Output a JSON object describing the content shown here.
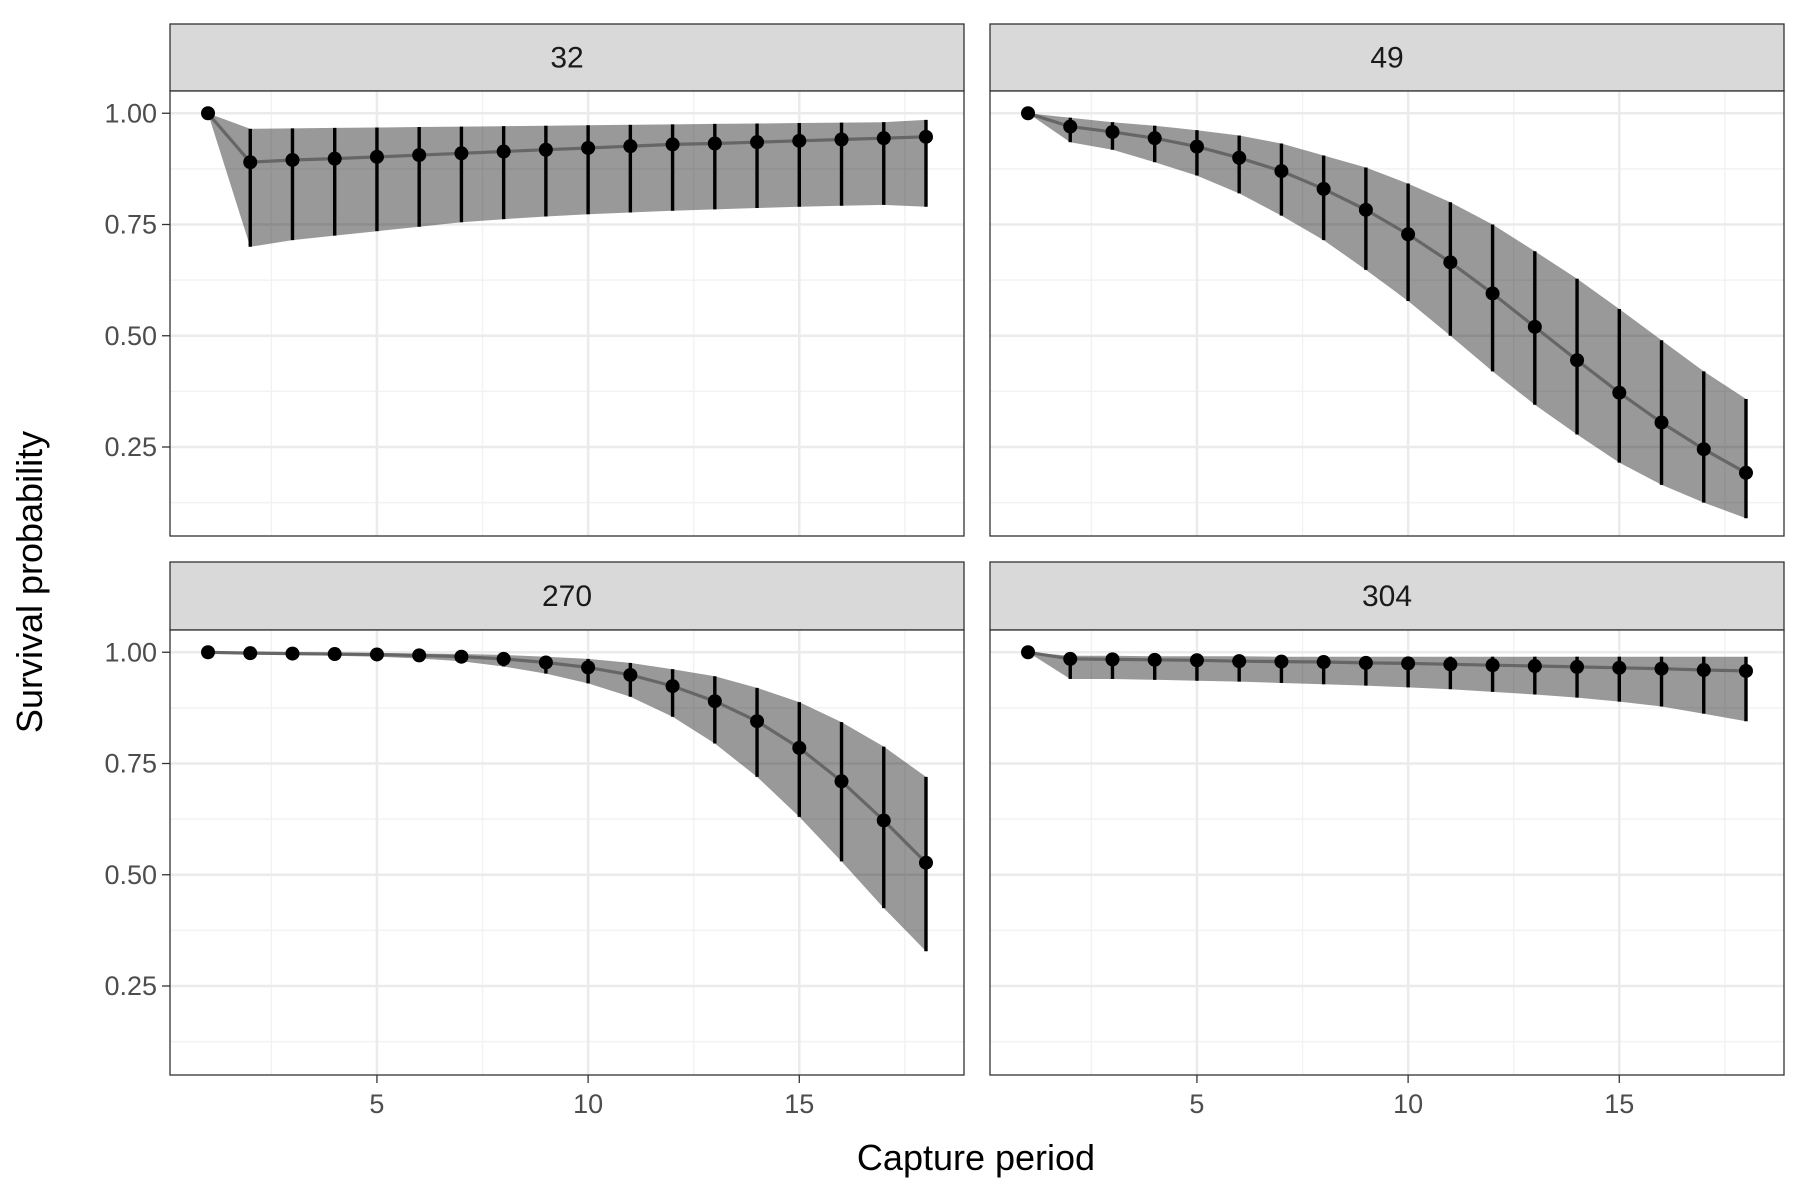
{
  "chart_data": {
    "type": "line",
    "xlabel": "Capture period",
    "ylabel": "Survival probability",
    "xlim": [
      0.1,
      18.9
    ],
    "ylim": [
      0.05,
      1.05
    ],
    "x_ticks": [
      5,
      10,
      15
    ],
    "y_ticks": [
      1.0,
      0.75,
      0.5,
      0.25
    ],
    "y_tick_labels": [
      "1.00",
      "0.75",
      "0.50",
      "0.25"
    ],
    "x": [
      1,
      2,
      3,
      4,
      5,
      6,
      7,
      8,
      9,
      10,
      11,
      12,
      13,
      14,
      15,
      16,
      17,
      18
    ],
    "grid": true,
    "panels": [
      {
        "label": "32",
        "estimate": [
          1.0,
          0.89,
          0.895,
          0.898,
          0.902,
          0.906,
          0.91,
          0.914,
          0.918,
          0.922,
          0.926,
          0.93,
          0.932,
          0.935,
          0.938,
          0.941,
          0.944,
          0.947
        ],
        "lower": [
          1.0,
          0.7,
          0.715,
          0.725,
          0.735,
          0.745,
          0.755,
          0.762,
          0.768,
          0.773,
          0.777,
          0.781,
          0.784,
          0.787,
          0.79,
          0.792,
          0.794,
          0.79
        ],
        "upper": [
          1.0,
          0.965,
          0.966,
          0.967,
          0.968,
          0.969,
          0.97,
          0.971,
          0.972,
          0.973,
          0.974,
          0.975,
          0.976,
          0.977,
          0.978,
          0.979,
          0.98,
          0.985
        ]
      },
      {
        "label": "49",
        "estimate": [
          1.0,
          0.97,
          0.958,
          0.944,
          0.925,
          0.9,
          0.87,
          0.83,
          0.783,
          0.728,
          0.665,
          0.595,
          0.52,
          0.445,
          0.372,
          0.305,
          0.245,
          0.192
        ],
        "lower": [
          1.0,
          0.935,
          0.918,
          0.89,
          0.86,
          0.82,
          0.77,
          0.715,
          0.648,
          0.578,
          0.5,
          0.42,
          0.345,
          0.278,
          0.215,
          0.165,
          0.125,
          0.09
        ],
        "upper": [
          1.0,
          0.99,
          0.98,
          0.972,
          0.962,
          0.95,
          0.932,
          0.905,
          0.878,
          0.842,
          0.8,
          0.75,
          0.69,
          0.628,
          0.56,
          0.49,
          0.42,
          0.358
        ]
      },
      {
        "label": "270",
        "estimate": [
          1.0,
          0.998,
          0.997,
          0.996,
          0.995,
          0.993,
          0.99,
          0.985,
          0.977,
          0.966,
          0.949,
          0.924,
          0.89,
          0.845,
          0.785,
          0.71,
          0.622,
          0.527
        ],
        "lower": [
          1.0,
          0.996,
          0.994,
          0.992,
          0.99,
          0.986,
          0.98,
          0.968,
          0.952,
          0.93,
          0.9,
          0.855,
          0.795,
          0.72,
          0.63,
          0.53,
          0.425,
          0.328
        ],
        "upper": [
          1.0,
          0.999,
          0.999,
          0.998,
          0.998,
          0.997,
          0.996,
          0.994,
          0.99,
          0.985,
          0.976,
          0.962,
          0.946,
          0.92,
          0.888,
          0.843,
          0.788,
          0.72
        ]
      },
      {
        "label": "304",
        "estimate": [
          1.0,
          0.985,
          0.984,
          0.983,
          0.982,
          0.98,
          0.979,
          0.978,
          0.976,
          0.975,
          0.973,
          0.971,
          0.969,
          0.967,
          0.965,
          0.963,
          0.96,
          0.958
        ],
        "lower": [
          1.0,
          0.94,
          0.94,
          0.938,
          0.936,
          0.934,
          0.931,
          0.928,
          0.925,
          0.921,
          0.917,
          0.911,
          0.905,
          0.898,
          0.889,
          0.878,
          0.862,
          0.845
        ],
        "upper": [
          1.0,
          0.992,
          0.992,
          0.991,
          0.991,
          0.991,
          0.99,
          0.99,
          0.99,
          0.99,
          0.99,
          0.99,
          0.99,
          0.99,
          0.99,
          0.99,
          0.99,
          0.99
        ]
      }
    ]
  }
}
